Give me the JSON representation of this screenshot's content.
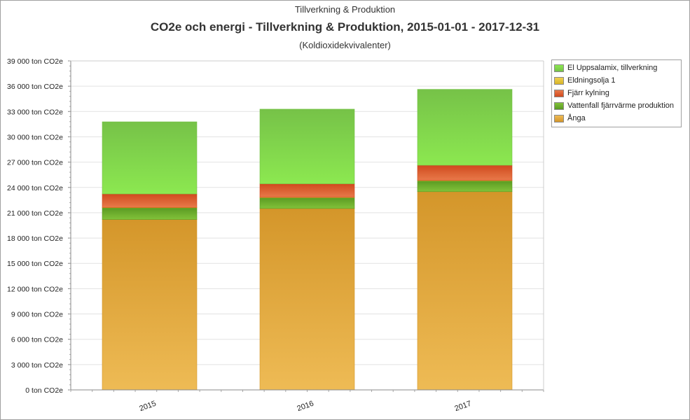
{
  "chart_data": {
    "type": "bar",
    "stacked": true,
    "supertitle": "Tillverkning & Produktion",
    "title": "CO2e och energi - Tillverkning & Produktion, 2015-01-01 - 2017-12-31",
    "subtitle": "(Koldioxidekvivalenter)",
    "categories": [
      "2015",
      "2016",
      "2017"
    ],
    "ylim": [
      0,
      39000
    ],
    "yticks": [
      {
        "value": 0,
        "label": "0 ton CO2e"
      },
      {
        "value": 3000,
        "label": "3 000 ton CO2e"
      },
      {
        "value": 6000,
        "label": "6 000 ton CO2e"
      },
      {
        "value": 9000,
        "label": "9 000 ton CO2e"
      },
      {
        "value": 12000,
        "label": "12 000 ton CO2e"
      },
      {
        "value": 15000,
        "label": "15 000 ton CO2e"
      },
      {
        "value": 18000,
        "label": "18 000 ton CO2e"
      },
      {
        "value": 21000,
        "label": "21 000 ton CO2e"
      },
      {
        "value": 24000,
        "label": "24 000 ton CO2e"
      },
      {
        "value": 27000,
        "label": "27 000 ton CO2e"
      },
      {
        "value": 30000,
        "label": "30 000 ton CO2e"
      },
      {
        "value": 33000,
        "label": "33 000 ton CO2e"
      },
      {
        "value": 36000,
        "label": "36 000 ton CO2e"
      },
      {
        "value": 39000,
        "label": "39 000 ton CO2e"
      }
    ],
    "grid": true,
    "legend_position": "top-right",
    "legend_order": [
      "El Uppsalamix, tillverkning",
      "Eldningsolja 1",
      "Fjärr kylning",
      "Vattenfall fjärrvärme produktion",
      "Ånga"
    ],
    "series": [
      {
        "name": "Ånga",
        "values": [
          20200,
          21500,
          23500
        ],
        "color": "#e2a83a",
        "color_light": "#eebb55",
        "color_dark": "#d4962a"
      },
      {
        "name": "Vattenfall fjärrvärme produktion",
        "values": [
          1400,
          1300,
          1300
        ],
        "color": "#6aaa2a",
        "color_light": "#82c23a",
        "color_dark": "#5a9a22"
      },
      {
        "name": "Eldningsolja 1",
        "values": [
          30,
          30,
          30
        ],
        "color": "#e8c53a",
        "color_light": "#f0d050",
        "color_dark": "#d8b52a"
      },
      {
        "name": "Fjärr kylning",
        "values": [
          1600,
          1600,
          1800
        ],
        "color": "#e05a2a",
        "color_light": "#e87a4a",
        "color_dark": "#d04a1e"
      },
      {
        "name": "El Uppsalamix, tillverkning",
        "values": [
          8550,
          8850,
          9000
        ],
        "color": "#7ccc48",
        "color_light": "#8ce850",
        "color_dark": "#76c248"
      }
    ]
  }
}
